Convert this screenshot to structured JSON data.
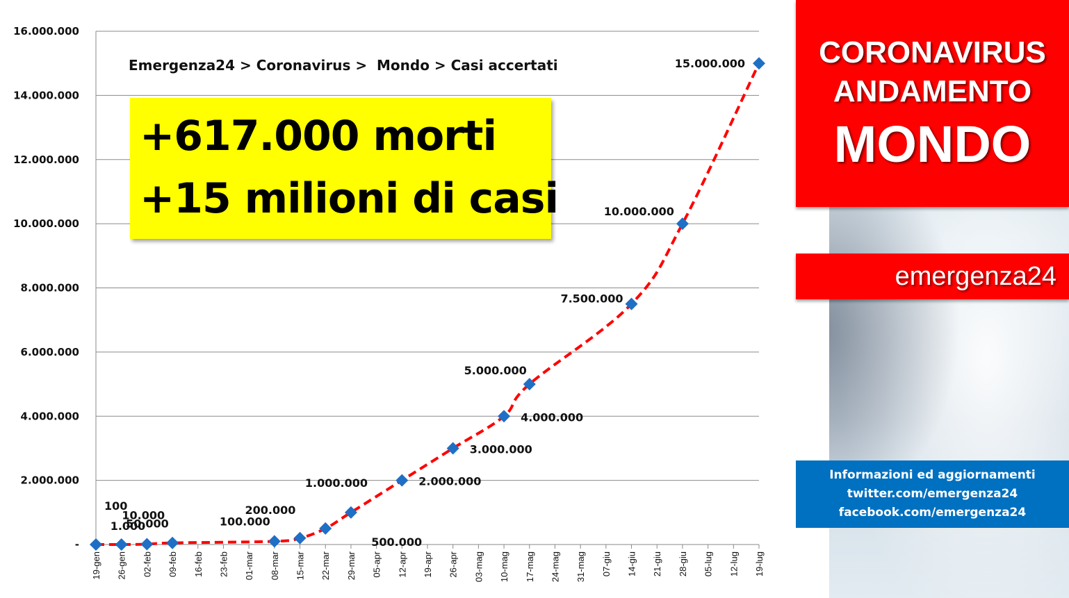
{
  "chart_data": {
    "type": "line",
    "breadcrumb": "Emergenza24 > Coronavirus >  Mondo > Casi accertati",
    "ylim": [
      0,
      16000000
    ],
    "y_ticks": [
      0,
      2000000,
      4000000,
      6000000,
      8000000,
      10000000,
      12000000,
      14000000,
      16000000
    ],
    "y_tick_labels": [
      "-",
      "2.000.000",
      "4.000.000",
      "6.000.000",
      "8.000.000",
      "10.000.000",
      "12.000.000",
      "14.000.000",
      "16.000.000"
    ],
    "x_categories": [
      "19-gen",
      "26-gen",
      "02-feb",
      "09-feb",
      "16-feb",
      "23-feb",
      "01-mar",
      "08-mar",
      "15-mar",
      "22-mar",
      "29-mar",
      "05-apr",
      "12-apr",
      "19-apr",
      "26-apr",
      "03-mag",
      "10-mag",
      "17-mag",
      "24-mag",
      "31-mag",
      "07-giu",
      "14-giu",
      "21-giu",
      "28-giu",
      "05-lug",
      "12-lug",
      "19-lug"
    ],
    "grid": true,
    "series_color": "#ff0000",
    "marker_color": "#1f6fc5",
    "points": [
      {
        "x": "19-gen",
        "y": 100,
        "label": "100"
      },
      {
        "x": "26-gen",
        "y": 1000,
        "label": "1.000"
      },
      {
        "x": "02-feb",
        "y": 10000,
        "label": "10.000"
      },
      {
        "x": "09-feb",
        "y": 50000,
        "label": "50.000"
      },
      {
        "x": "08-mar",
        "y": 100000,
        "label": "100.000"
      },
      {
        "x": "15-mar",
        "y": 200000,
        "label": "200.000"
      },
      {
        "x": "22-mar",
        "y": 500000,
        "label": "500.000"
      },
      {
        "x": "29-mar",
        "y": 1000000,
        "label": "1.000.000"
      },
      {
        "x": "12-apr",
        "y": 2000000,
        "label": "2.000.000"
      },
      {
        "x": "26-apr",
        "y": 3000000,
        "label": "3.000.000"
      },
      {
        "x": "10-mag",
        "y": 4000000,
        "label": "4.000.000"
      },
      {
        "x": "17-mag",
        "y": 5000000,
        "label": "5.000.000"
      },
      {
        "x": "14-giu",
        "y": 7500000,
        "label": "7.500.000"
      },
      {
        "x": "28-giu",
        "y": 10000000,
        "label": "10.000.000"
      },
      {
        "x": "19-lug",
        "y": 15000000,
        "label": "15.000.000"
      }
    ]
  },
  "headline": {
    "line1": "+617.000 morti",
    "line2": "+15 milioni di casi"
  },
  "side_panel": {
    "title_line1": "CORONAVIRUS",
    "title_line2": "ANDAMENTO",
    "title_line3": "MONDO",
    "brand": "emergenza24",
    "info_lines": [
      "Informazioni ed aggiornamenti",
      "twitter.com/emergenza24",
      "facebook.com/emergenza24"
    ]
  }
}
